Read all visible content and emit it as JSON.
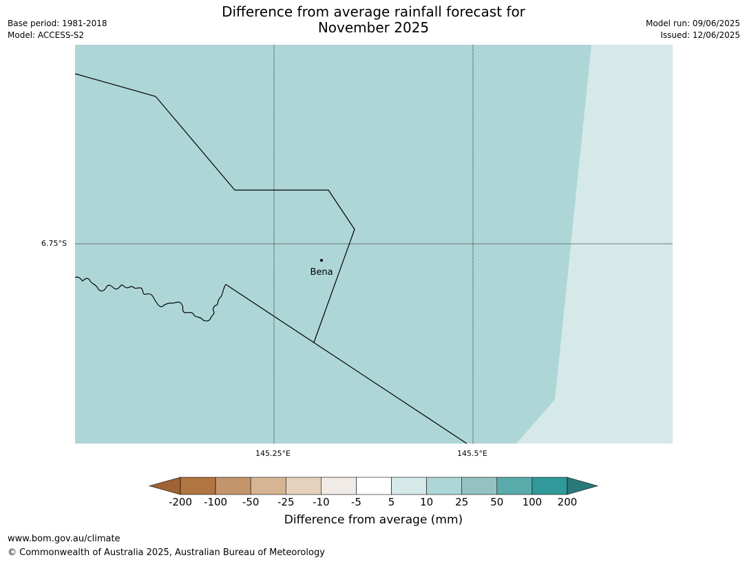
{
  "header": {
    "base_period": "Base period: 1981-2018",
    "model": "Model: ACCESS-S2",
    "model_run": "Model run: 09/06/2025",
    "issued": "Issued: 12/06/2025",
    "title_line1": "Difference from average rainfall forecast for",
    "title_line2": "November 2025"
  },
  "map": {
    "latitude_label": "6.75°S",
    "longitude_labels": [
      "145.25°E",
      "145.5°E"
    ],
    "place": {
      "name": "Bena"
    },
    "fill_colors": {
      "main_region": "#aed6d6",
      "east_region": "#d5e9e9"
    }
  },
  "colorbar": {
    "label": "Difference from average (mm)",
    "ticks": [
      "-200",
      "-100",
      "-50",
      "-25",
      "-10",
      "-5",
      "5",
      "10",
      "25",
      "50",
      "100",
      "200"
    ],
    "colors": [
      "#a06232",
      "#b07540",
      "#c4956b",
      "#d6b594",
      "#e6d1bd",
      "#f0ebe6",
      "#ffffff",
      "#d5e9e9",
      "#aed6d6",
      "#94c2c2",
      "#5aacac",
      "#319999",
      "#2a7979"
    ]
  },
  "footer": {
    "url": "www.bom.gov.au/climate",
    "copyright": "© Commonwealth of Australia 2025, Australian Bureau of Meteorology"
  }
}
